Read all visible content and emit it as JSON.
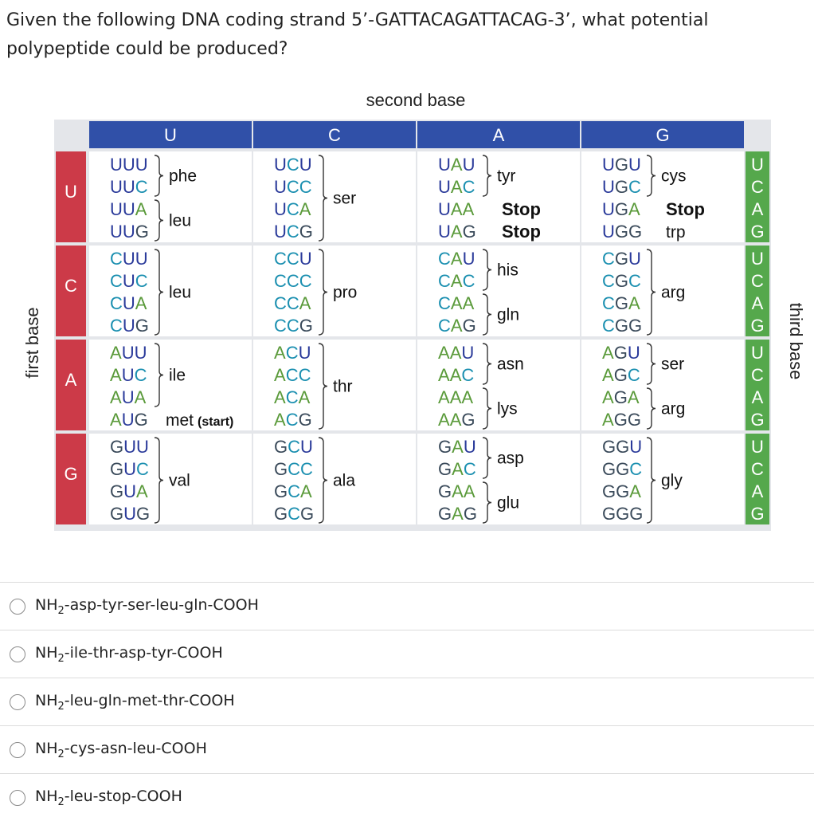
{
  "question": {
    "line1": "Given the following DNA coding strand 5’-GATTACAGATTACAG-3’, what potential",
    "line2": "polypeptide could be produced?"
  },
  "table": {
    "title": "second base",
    "first_base_label": "first base",
    "third_base_label": "third base",
    "second_bases": [
      "U",
      "C",
      "A",
      "G"
    ],
    "first_bases": [
      "U",
      "C",
      "A",
      "G"
    ],
    "third_bases": [
      "U",
      "C",
      "A",
      "G"
    ],
    "header_colors": {
      "second": "#3050a8",
      "first": "#cc3a48",
      "third": "#55a84c"
    },
    "base_colors": {
      "U": "#2a3a9a",
      "C": "#1a8fb0",
      "A": "#5a9a3a",
      "G": "#3a4a5a"
    },
    "groups": [
      {
        "row": "U",
        "col": "U",
        "codons": [
          "UUU",
          "UUC",
          "UUA",
          "UUG"
        ],
        "aa": [
          {
            "label": "phe",
            "start": 0,
            "end": 1
          },
          {
            "label": "leu",
            "start": 2,
            "end": 3
          }
        ]
      },
      {
        "row": "U",
        "col": "C",
        "codons": [
          "UCU",
          "UCC",
          "UCA",
          "UCG"
        ],
        "aa": [
          {
            "label": "ser",
            "start": 0,
            "end": 3
          }
        ]
      },
      {
        "row": "U",
        "col": "A",
        "codons": [
          "UAU",
          "UAC",
          "UAA",
          "UAG"
        ],
        "aa": [
          {
            "label": "tyr",
            "start": 0,
            "end": 1
          },
          {
            "label": "Stop",
            "start": 2,
            "end": 2,
            "bold": true
          },
          {
            "label": "Stop",
            "start": 3,
            "end": 3,
            "bold": true
          }
        ]
      },
      {
        "row": "U",
        "col": "G",
        "codons": [
          "UGU",
          "UGC",
          "UGA",
          "UGG"
        ],
        "aa": [
          {
            "label": "cys",
            "start": 0,
            "end": 1
          },
          {
            "label": "Stop",
            "start": 2,
            "end": 2,
            "bold": true
          },
          {
            "label": "trp",
            "start": 3,
            "end": 3
          }
        ]
      },
      {
        "row": "C",
        "col": "U",
        "codons": [
          "CUU",
          "CUC",
          "CUA",
          "CUG"
        ],
        "aa": [
          {
            "label": "leu",
            "start": 0,
            "end": 3
          }
        ]
      },
      {
        "row": "C",
        "col": "C",
        "codons": [
          "CCU",
          "CCC",
          "CCA",
          "CCG"
        ],
        "aa": [
          {
            "label": "pro",
            "start": 0,
            "end": 3
          }
        ]
      },
      {
        "row": "C",
        "col": "A",
        "codons": [
          "CAU",
          "CAC",
          "CAA",
          "CAG"
        ],
        "aa": [
          {
            "label": "his",
            "start": 0,
            "end": 1
          },
          {
            "label": "gln",
            "start": 2,
            "end": 3
          }
        ]
      },
      {
        "row": "C",
        "col": "G",
        "codons": [
          "CGU",
          "CGC",
          "CGA",
          "CGG"
        ],
        "aa": [
          {
            "label": "arg",
            "start": 0,
            "end": 3
          }
        ]
      },
      {
        "row": "A",
        "col": "U",
        "codons": [
          "AUU",
          "AUC",
          "AUA",
          "AUG"
        ],
        "aa": [
          {
            "label": "ile",
            "start": 0,
            "end": 2
          },
          {
            "label": "met",
            "note": "(start)",
            "start": 3,
            "end": 3
          }
        ]
      },
      {
        "row": "A",
        "col": "C",
        "codons": [
          "ACU",
          "ACC",
          "ACA",
          "ACG"
        ],
        "aa": [
          {
            "label": "thr",
            "start": 0,
            "end": 3
          }
        ]
      },
      {
        "row": "A",
        "col": "A",
        "codons": [
          "AAU",
          "AAC",
          "AAA",
          "AAG"
        ],
        "aa": [
          {
            "label": "asn",
            "start": 0,
            "end": 1
          },
          {
            "label": "lys",
            "start": 2,
            "end": 3
          }
        ]
      },
      {
        "row": "A",
        "col": "G",
        "codons": [
          "AGU",
          "AGC",
          "AGA",
          "AGG"
        ],
        "aa": [
          {
            "label": "ser",
            "start": 0,
            "end": 1
          },
          {
            "label": "arg",
            "start": 2,
            "end": 3
          }
        ]
      },
      {
        "row": "G",
        "col": "U",
        "codons": [
          "GUU",
          "GUC",
          "GUA",
          "GUG"
        ],
        "aa": [
          {
            "label": "val",
            "start": 0,
            "end": 3
          }
        ]
      },
      {
        "row": "G",
        "col": "C",
        "codons": [
          "GCU",
          "GCC",
          "GCA",
          "GCG"
        ],
        "aa": [
          {
            "label": "ala",
            "start": 0,
            "end": 3
          }
        ]
      },
      {
        "row": "G",
        "col": "A",
        "codons": [
          "GAU",
          "GAC",
          "GAA",
          "GAG"
        ],
        "aa": [
          {
            "label": "asp",
            "start": 0,
            "end": 1
          },
          {
            "label": "glu",
            "start": 2,
            "end": 3
          }
        ]
      },
      {
        "row": "G",
        "col": "G",
        "codons": [
          "GGU",
          "GGC",
          "GGA",
          "GGG"
        ],
        "aa": [
          {
            "label": "gly",
            "start": 0,
            "end": 3
          }
        ]
      }
    ]
  },
  "options": [
    {
      "prefix": "NH",
      "sub": "2",
      "rest": "-asp-tyr-ser-leu-gln-COOH"
    },
    {
      "prefix": "NH",
      "sub": "2",
      "rest": "-ile-thr-asp-tyr-COOH"
    },
    {
      "prefix": "NH",
      "sub": "2",
      "rest": "-leu-gln-met-thr-COOH"
    },
    {
      "prefix": "NH",
      "sub": "2",
      "rest": "-cys-asn-leu-COOH"
    },
    {
      "prefix": "NH",
      "sub": "2",
      "rest": "-leu-stop-COOH"
    }
  ]
}
